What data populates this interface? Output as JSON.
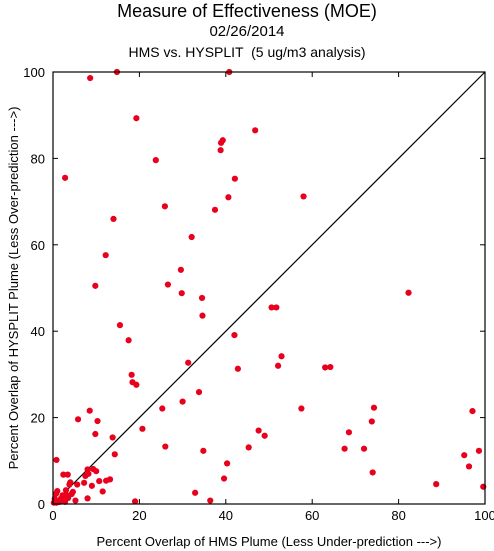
{
  "title": "Measure of Effectiveness (MOE)",
  "date": "02/26/2014",
  "subtitle": "HMS vs. HYSPLIT  (5 ug/m3 analysis)",
  "chart_data": {
    "type": "scatter",
    "xlabel": "Percent Overlap of HMS Plume (Less Under-prediction --->)",
    "ylabel": "Percent Overlap of HYSPLIT Plume (Less Over-prediction --->)",
    "xlim": [
      0,
      100
    ],
    "ylim": [
      0,
      100
    ],
    "xticks": [
      0,
      20,
      40,
      60,
      80,
      100
    ],
    "yticks": [
      0,
      20,
      40,
      60,
      80,
      100
    ],
    "grid": false,
    "reference_line": "y = x",
    "colors": {
      "points": "#e8001c",
      "line": "#000000",
      "axes": "#000000"
    },
    "points": [
      [
        0.2,
        0.3
      ],
      [
        0.5,
        0.5
      ],
      [
        0.8,
        0.3
      ],
      [
        0.4,
        1.2
      ],
      [
        0.7,
        2.4
      ],
      [
        1.0,
        3.0
      ],
      [
        0.8,
        10.2
      ],
      [
        1.5,
        0.5
      ],
      [
        1.8,
        1.2
      ],
      [
        2.0,
        0.7
      ],
      [
        2.2,
        2.0
      ],
      [
        2.5,
        1.5
      ],
      [
        2.8,
        0.5
      ],
      [
        2.4,
        6.8
      ],
      [
        3.0,
        3.2
      ],
      [
        3.2,
        2.0
      ],
      [
        3.5,
        1.4
      ],
      [
        3.4,
        6.8
      ],
      [
        3.8,
        4.5
      ],
      [
        4.0,
        5.0
      ],
      [
        4.3,
        2.3
      ],
      [
        4.6,
        2.8
      ],
      [
        5.2,
        0.8
      ],
      [
        5.6,
        4.5
      ],
      [
        5.8,
        19.6
      ],
      [
        7.2,
        4.9
      ],
      [
        7.5,
        6.5
      ],
      [
        8.0,
        1.3
      ],
      [
        8.0,
        8.0
      ],
      [
        8.2,
        7.0
      ],
      [
        8.5,
        21.6
      ],
      [
        8.6,
        98.6
      ],
      [
        9.0,
        4.2
      ],
      [
        9.3,
        8.1
      ],
      [
        9.8,
        16.2
      ],
      [
        9.8,
        50.5
      ],
      [
        10.0,
        7.6
      ],
      [
        10.3,
        19.2
      ],
      [
        10.7,
        5.3
      ],
      [
        11.5,
        2.9
      ],
      [
        12.2,
        57.6
      ],
      [
        12.3,
        5.4
      ],
      [
        13.2,
        5.7
      ],
      [
        13.8,
        15.4
      ],
      [
        14.0,
        66.0
      ],
      [
        14.3,
        11.5
      ],
      [
        14.8,
        100.0
      ],
      [
        15.5,
        41.4
      ],
      [
        2.8,
        75.5
      ],
      [
        17.5,
        37.9
      ],
      [
        18.2,
        29.9
      ],
      [
        18.4,
        28.2
      ],
      [
        19.0,
        0.6
      ],
      [
        19.3,
        27.6
      ],
      [
        19.3,
        89.3
      ],
      [
        20.7,
        17.4
      ],
      [
        23.8,
        79.6
      ],
      [
        25.3,
        22.1
      ],
      [
        25.9,
        68.9
      ],
      [
        26.0,
        13.3
      ],
      [
        26.6,
        50.8
      ],
      [
        29.6,
        54.2
      ],
      [
        29.8,
        48.8
      ],
      [
        30.0,
        23.7
      ],
      [
        31.3,
        32.7
      ],
      [
        32.1,
        61.8
      ],
      [
        32.9,
        2.6
      ],
      [
        33.8,
        25.9
      ],
      [
        34.5,
        47.7
      ],
      [
        34.6,
        43.6
      ],
      [
        34.8,
        12.3
      ],
      [
        36.4,
        0.8
      ],
      [
        37.5,
        68.1
      ],
      [
        38.8,
        81.9
      ],
      [
        38.9,
        83.6
      ],
      [
        39.3,
        84.2
      ],
      [
        39.6,
        5.9
      ],
      [
        40.3,
        9.4
      ],
      [
        40.6,
        71.0
      ],
      [
        40.8,
        100.0
      ],
      [
        42.0,
        39.1
      ],
      [
        42.1,
        75.3
      ],
      [
        42.8,
        31.3
      ],
      [
        45.3,
        13.1
      ],
      [
        46.8,
        86.5
      ],
      [
        47.6,
        17.0
      ],
      [
        49.0,
        15.8
      ],
      [
        50.6,
        45.5
      ],
      [
        51.7,
        45.5
      ],
      [
        52.1,
        32.0
      ],
      [
        52.9,
        34.2
      ],
      [
        57.5,
        22.1
      ],
      [
        58.0,
        71.2
      ],
      [
        63.0,
        31.6
      ],
      [
        64.2,
        31.7
      ],
      [
        67.5,
        12.8
      ],
      [
        68.5,
        16.6
      ],
      [
        72.0,
        12.8
      ],
      [
        73.8,
        19.1
      ],
      [
        74.0,
        7.3
      ],
      [
        74.3,
        22.3
      ],
      [
        82.3,
        48.9
      ],
      [
        88.7,
        4.6
      ],
      [
        95.2,
        11.3
      ],
      [
        96.3,
        8.7
      ],
      [
        97.1,
        21.5
      ],
      [
        98.6,
        12.3
      ],
      [
        99.6,
        4.0
      ]
    ]
  }
}
